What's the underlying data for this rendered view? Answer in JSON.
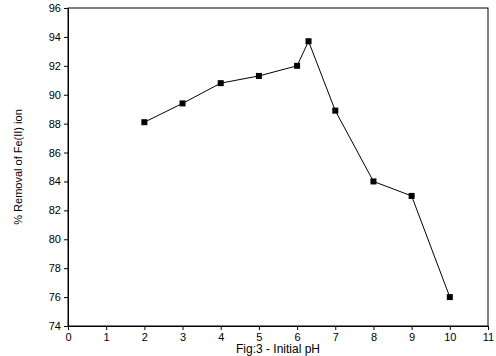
{
  "chart_data": {
    "type": "line",
    "x_label": "Fig:3 - Initial pH",
    "y_label": "% Removal of Fe(II) ion",
    "x": [
      2,
      3,
      4,
      5,
      6,
      6.3,
      7,
      8,
      9,
      10
    ],
    "values": [
      88.1,
      89.4,
      90.8,
      91.3,
      92.0,
      93.7,
      88.9,
      84.0,
      83.0,
      76.0
    ],
    "color": "#000000",
    "marker": "square",
    "line_style": "solid",
    "xlim": [
      0,
      11
    ],
    "xticks": [
      0,
      1,
      2,
      3,
      4,
      5,
      6,
      7,
      8,
      9,
      10,
      11
    ],
    "ylim": [
      74,
      96
    ],
    "yticks": [
      74,
      76,
      78,
      80,
      82,
      84,
      86,
      88,
      90,
      92,
      94,
      96
    ]
  }
}
